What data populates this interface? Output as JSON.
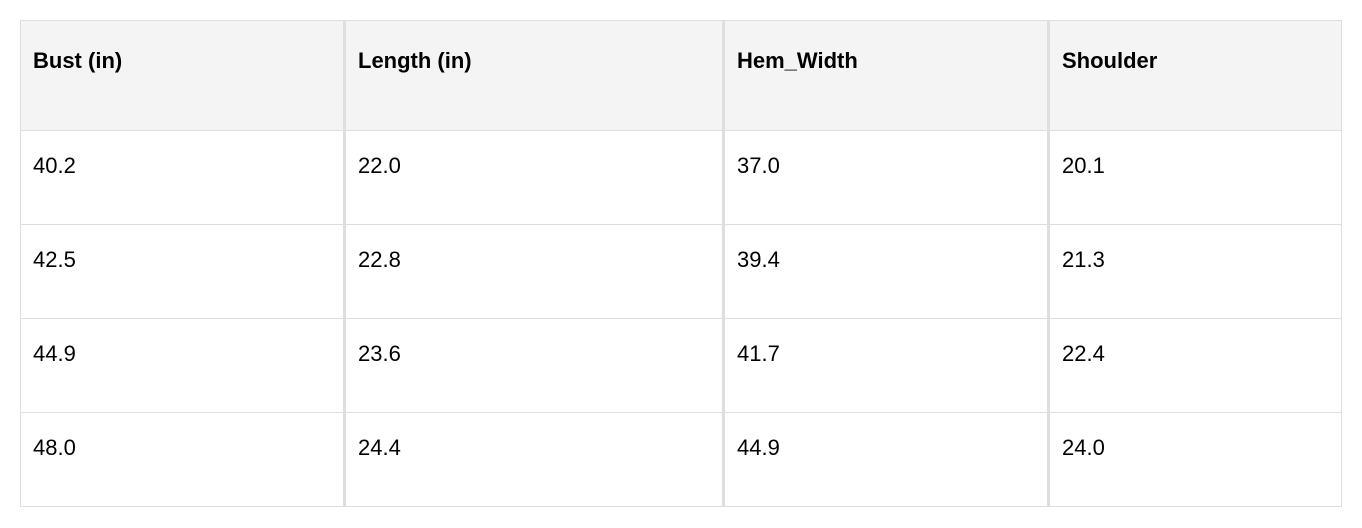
{
  "table": {
    "headers": [
      "Bust (in)",
      "Length (in)",
      "Hem_Width",
      "Shoulder"
    ],
    "rows": [
      [
        "40.2",
        "22.0",
        "37.0",
        "20.1"
      ],
      [
        "42.5",
        "22.8",
        "39.4",
        "21.3"
      ],
      [
        "44.9",
        "23.6",
        "41.7",
        "22.4"
      ],
      [
        "48.0",
        "24.4",
        "44.9",
        "24.0"
      ]
    ]
  }
}
